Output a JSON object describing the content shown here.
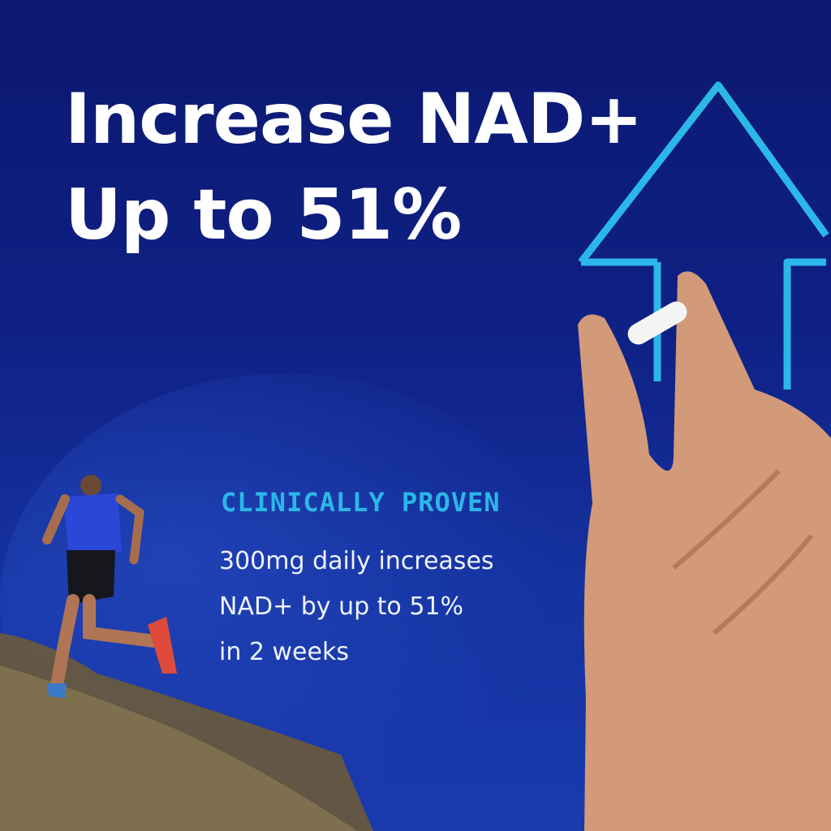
{
  "headline": {
    "line1": "Increase NAD+",
    "line2": "Up to 51%"
  },
  "claim": {
    "eyebrow": "CLINICALLY PROVEN",
    "lines": [
      "300mg daily increases",
      "NAD+ by up to 51%",
      "in 2 weeks"
    ]
  },
  "colors": {
    "background": "#0f2185",
    "accent": "#2bb7e8",
    "text": "#ffffff"
  },
  "images": {
    "left": "runner-on-hill",
    "right": "hand-holding-capsule",
    "graphic": "up-arrow-outline"
  }
}
